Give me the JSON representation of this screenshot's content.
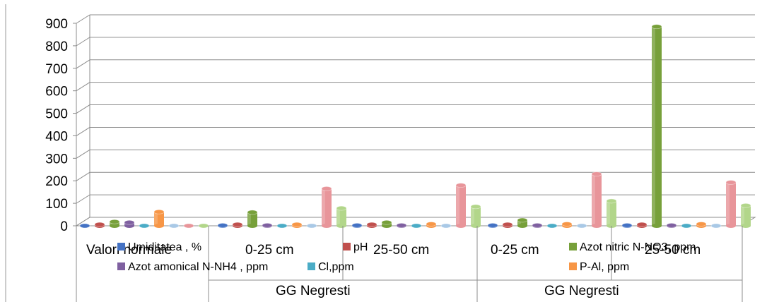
{
  "chart_data": {
    "type": "bar",
    "title": "",
    "xlabel": "",
    "ylabel": "",
    "ylim": [
      0,
      900
    ],
    "yticks": [
      0,
      100,
      200,
      300,
      400,
      500,
      600,
      700,
      800,
      900
    ],
    "grid": true,
    "legend_position": "overlapping-bottom",
    "categories": [
      "Valori normale",
      "0-25 cm",
      "25-50 cm",
      "0-25 cm",
      "25-50 cm"
    ],
    "groups": [
      "GG Negresti",
      "GG Negresti"
    ],
    "series": [
      {
        "name": "Umiditatea , %",
        "color": "#4472C4",
        "values": [
          0,
          2,
          2,
          2,
          2
        ]
      },
      {
        "name": "pH",
        "color": "#C0504D",
        "values": [
          6,
          6,
          6,
          6,
          6
        ]
      },
      {
        "name": "Azot nitric N-NO3, ppm",
        "color": "#77A03A",
        "values": [
          18,
          60,
          15,
          25,
          885
        ]
      },
      {
        "name": "Azot amonical N-NH4 , ppm",
        "color": "#7F60A0",
        "values": [
          15,
          2,
          2,
          2,
          2
        ]
      },
      {
        "name": "Cl,ppm",
        "color": "#4BACC6",
        "values": [
          0,
          0,
          0,
          0,
          0
        ]
      },
      {
        "name": "P-Al, ppm",
        "color": "#F79646",
        "values": [
          62,
          6,
          8,
          8,
          8
        ]
      },
      {
        "name": "",
        "color": "#A9C9E6",
        "values": [
          0,
          0,
          0,
          0,
          0
        ]
      },
      {
        "name": "",
        "color": "#E8959A",
        "values": [
          0,
          165,
          180,
          230,
          193
        ]
      },
      {
        "name": "",
        "color": "#B2D68A",
        "values": [
          0,
          78,
          85,
          110,
          90
        ]
      }
    ]
  }
}
